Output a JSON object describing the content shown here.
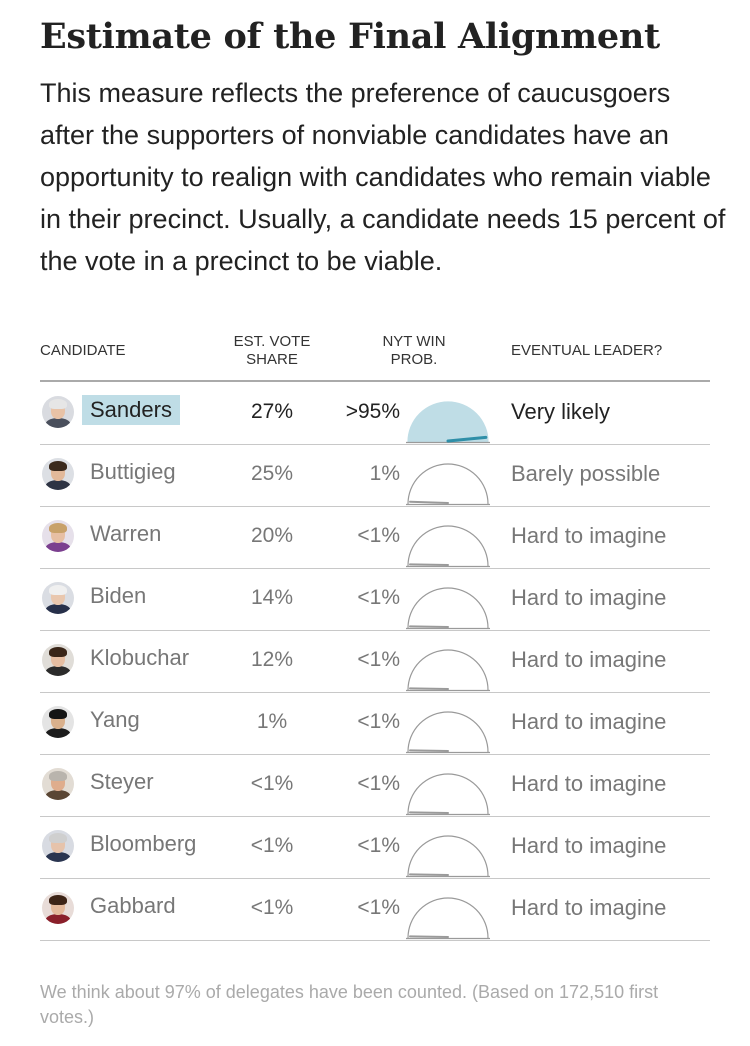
{
  "title": "Estimate of the Final Alignment",
  "description": "This measure reflects the preference of caucusgoers after the supporters of nonviable candidates have an opportunity to realign with candidates who remain viable in their precinct. Usually, a candidate needs 15 percent of the vote in a precinct to be viable.",
  "table": {
    "headers": {
      "candidate": "CANDIDATE",
      "share_line1": "EST. VOTE",
      "share_line2": "SHARE",
      "prob_line1": "NYT WIN",
      "prob_line2": "PROB.",
      "leader": "EVENTUAL LEADER?"
    },
    "rows": [
      {
        "name": "Sanders",
        "share": "27%",
        "prob": ">95%",
        "leader": "Very likely"
      },
      {
        "name": "Buttigieg",
        "share": "25%",
        "prob": "1%",
        "leader": "Barely possible"
      },
      {
        "name": "Warren",
        "share": "20%",
        "prob": "<1%",
        "leader": "Hard to imagine"
      },
      {
        "name": "Biden",
        "share": "14%",
        "prob": "<1%",
        "leader": "Hard to imagine"
      },
      {
        "name": "Klobuchar",
        "share": "12%",
        "prob": "<1%",
        "leader": "Hard to imagine"
      },
      {
        "name": "Yang",
        "share": "1%",
        "prob": "<1%",
        "leader": "Hard to imagine"
      },
      {
        "name": "Steyer",
        "share": "<1%",
        "prob": "<1%",
        "leader": "Hard to imagine"
      },
      {
        "name": "Bloomberg",
        "share": "<1%",
        "prob": "<1%",
        "leader": "Hard to imagine"
      },
      {
        "name": "Gabbard",
        "share": "<1%",
        "prob": "<1%",
        "leader": "Hard to imagine"
      }
    ]
  },
  "chart_data": {
    "type": "table",
    "columns": [
      "CANDIDATE",
      "EST. VOTE SHARE",
      "NYT WIN PROB.",
      "EVENTUAL LEADER?"
    ],
    "win_prob_gauge_values": [
      0.97,
      0.01,
      0.005,
      0.005,
      0.005,
      0.005,
      0.005,
      0.005,
      0.005
    ],
    "gauge_fill_color": "#bfdde6",
    "gauge_needle_color": "#2f8fa8",
    "highlight_color": "#bfdde6"
  },
  "footer": "We think about 97% of delegates have been counted. (Based on 172,510 first votes.)",
  "colors": {
    "leader_text": "#222222",
    "other_text": "#777777",
    "rule": "#c8c8c8"
  },
  "avatars": [
    {
      "skin": "#e8c2a6",
      "hair": "#e6e6e6",
      "suit": "#4a4f5c",
      "bg": "#d9dbe0"
    },
    {
      "skin": "#e2b99a",
      "hair": "#3b2a1d",
      "suit": "#2e3444",
      "bg": "#dcdfe4"
    },
    {
      "skin": "#e7bfa4",
      "hair": "#c8a16a",
      "suit": "#7b3f8f",
      "bg": "#e6e0ea"
    },
    {
      "skin": "#e9c7ae",
      "hair": "#f0f0f0",
      "suit": "#27304a",
      "bg": "#dadde3"
    },
    {
      "skin": "#e6bea2",
      "hair": "#3a2618",
      "suit": "#2b2b2b",
      "bg": "#e0ddd8"
    },
    {
      "skin": "#d9b08c",
      "hair": "#151515",
      "suit": "#1c1c1c",
      "bg": "#e4e4e4"
    },
    {
      "skin": "#dfad8d",
      "hair": "#b9b4ad",
      "suit": "#5a4634",
      "bg": "#e2dcd4"
    },
    {
      "skin": "#e6c3ab",
      "hair": "#cfcfcf",
      "suit": "#2a3550",
      "bg": "#d8dbe2"
    },
    {
      "skin": "#e4b99b",
      "hair": "#3d2416",
      "suit": "#8a1f2a",
      "bg": "#e8dcd8"
    }
  ]
}
